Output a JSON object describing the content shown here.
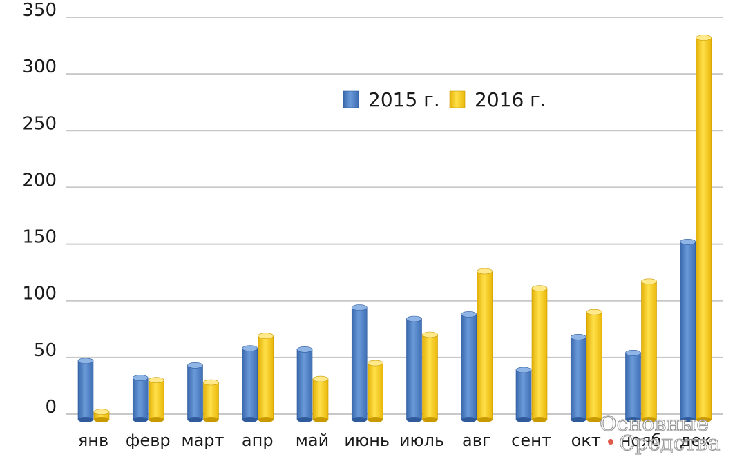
{
  "chart_data": {
    "type": "bar",
    "categories": [
      "янв",
      "февр",
      "март",
      "апр",
      "май",
      "июнь",
      "июль",
      "авг",
      "сент",
      "окт",
      "нояб",
      "дек"
    ],
    "series": [
      {
        "name": "2015 г.",
        "color": "#4f81c9",
        "values": [
          47,
          32,
          43,
          58,
          57,
          94,
          84,
          88,
          39,
          68,
          54,
          152
        ]
      },
      {
        "name": "2016 г.",
        "color": "#f7cd16",
        "values": [
          2,
          30,
          28,
          69,
          31,
          45,
          70,
          126,
          111,
          90,
          117,
          332
        ]
      }
    ],
    "y_ticks": [
      "0",
      "50",
      "100",
      "150",
      "200",
      "250",
      "300",
      "350"
    ],
    "ylim": [
      0,
      350
    ],
    "grid": true,
    "legend_position": "top-center",
    "title": "",
    "xlabel": "",
    "ylabel": ""
  },
  "watermark": {
    "line1": "Основные",
    "line2": "Средства"
  }
}
